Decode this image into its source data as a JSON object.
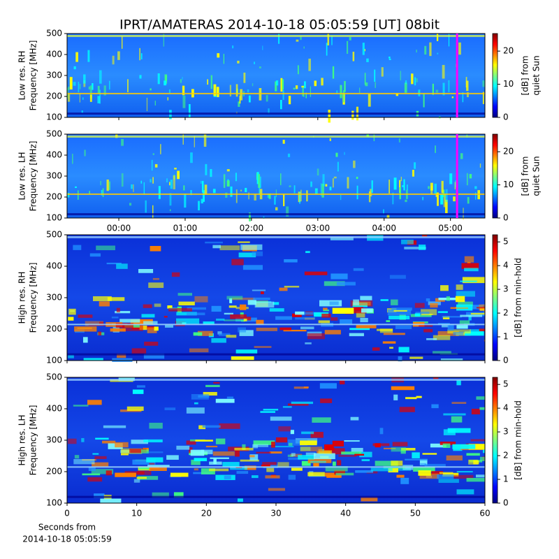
{
  "title": "IPRT/AMATERAS 2014-10-18 05:05:59 [UT]   08bit",
  "chart_data": [
    {
      "type": "heatmap",
      "ylabel": [
        "Low res. RH",
        "Frequency [MHz]"
      ],
      "ylim": [
        100,
        500
      ],
      "yticks": [
        100,
        200,
        300,
        400,
        500
      ],
      "xlim": [
        -0.78,
        5.52
      ],
      "xticks": [
        0,
        1,
        2,
        3,
        4,
        5
      ],
      "show_xtick_labels": false,
      "cursor": 5.1,
      "cursor_color": "#ff00ff",
      "colorbar": {
        "label": [
          "[dB] from",
          "quiet Sun"
        ],
        "lim": [
          0,
          25.3
        ],
        "ticks": [
          0,
          10,
          20
        ]
      }
    },
    {
      "type": "heatmap",
      "ylabel": [
        "Low res. LH",
        "Frequency [MHz]"
      ],
      "ylim": [
        100,
        500
      ],
      "yticks": [
        100,
        200,
        300,
        400,
        500
      ],
      "xlim": [
        -0.78,
        5.52
      ],
      "xticks": [
        {
          "value": 0,
          "label": "00:00"
        },
        {
          "value": 1,
          "label": "01:00"
        },
        {
          "value": 2,
          "label": "02:00"
        },
        {
          "value": 3,
          "label": "03:00"
        },
        {
          "value": 4,
          "label": "04:00"
        },
        {
          "value": 5,
          "label": "05:00"
        }
      ],
      "show_xtick_labels": true,
      "cursor": 5.1,
      "cursor_color": "#ff00ff",
      "colorbar": {
        "label": [
          "[dB] from",
          "quiet Sun"
        ],
        "lim": [
          0,
          25.3
        ],
        "ticks": [
          0,
          10,
          20
        ]
      }
    },
    {
      "type": "heatmap",
      "ylabel": [
        "High res. RH",
        "Frequency [MHz]"
      ],
      "ylim": [
        100,
        500
      ],
      "yticks": [
        100,
        200,
        300,
        400,
        500
      ],
      "xlim": [
        0,
        60
      ],
      "xticks": [
        0,
        10,
        20,
        30,
        40,
        50,
        60
      ],
      "show_xtick_labels": false,
      "colorbar": {
        "label": [
          "[dB] from min-hold"
        ],
        "lim": [
          0,
          5.3
        ],
        "ticks": [
          0,
          1,
          2,
          3,
          4,
          5
        ]
      }
    },
    {
      "type": "heatmap",
      "ylabel": [
        "High res. LH",
        "Frequency [MHz]"
      ],
      "ylim": [
        100,
        500
      ],
      "yticks": [
        100,
        200,
        300,
        400,
        500
      ],
      "xlim": [
        0,
        60
      ],
      "xticks": [
        0,
        10,
        20,
        30,
        40,
        50,
        60
      ],
      "show_xtick_labels": true,
      "xlabel": [
        "Seconds from",
        "2014-10-18 05:05:59"
      ],
      "colorbar": {
        "label": [
          "[dB] from min-hold"
        ],
        "lim": [
          0,
          5.3
        ],
        "ticks": [
          0,
          1,
          2,
          3,
          4,
          5
        ]
      }
    }
  ]
}
